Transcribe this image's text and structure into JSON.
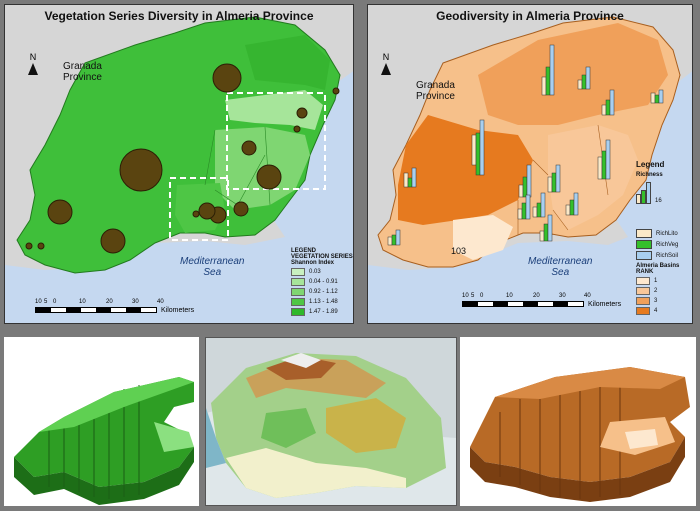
{
  "left_map": {
    "title": "Vegetation Series Diversity in Almeria Province",
    "north_label": "N",
    "province_label": "Granada\nProvince",
    "sea_label": "Mediterranean\nSea",
    "scale": {
      "ticks": [
        "10",
        "5",
        "0",
        "10",
        "20",
        "30",
        "40"
      ],
      "unit": "Kilometers"
    },
    "legend": {
      "title": "LEGEND",
      "subtitle": "VEGETATION SERIES",
      "index_label": "Shannon Index",
      "classes": [
        {
          "label": "0.03",
          "color": "#c8f0c0"
        },
        {
          "label": "0.04 - 0.91",
          "color": "#a6e59a"
        },
        {
          "label": "0.92 - 1.12",
          "color": "#7fd672"
        },
        {
          "label": "1.13 - 1.48",
          "color": "#4ec645"
        },
        {
          "label": "1.47 - 1.89",
          "color": "#2fb82a"
        }
      ]
    },
    "colors": {
      "land": "#3fbf3a",
      "sea": "#c5d8f0",
      "circle": "#5a4410"
    }
  },
  "right_map": {
    "title": "Geodiversity in Almeria Province",
    "north_label": "N",
    "province_label": "Granada\nProvince",
    "sea_label": "Mediterranean\nSea",
    "basin_number": "103",
    "scale": {
      "ticks": [
        "10",
        "5",
        "0",
        "10",
        "20",
        "30",
        "40"
      ],
      "unit": "Kilometers"
    },
    "legend": {
      "title": "Legend",
      "richness_label": "Richness",
      "richness_value": "16",
      "bar_series": [
        {
          "label": "RichLito",
          "color": "#fbe9c8"
        },
        {
          "label": "RichVeg",
          "color": "#34c02b"
        },
        {
          "label": "RichSoil",
          "color": "#a8cff0"
        }
      ],
      "basins_label": "Almeria Basins",
      "rank_label": "RANK",
      "ranks": [
        {
          "label": "1",
          "color": "#fde8cf"
        },
        {
          "label": "2",
          "color": "#f8c799"
        },
        {
          "label": "3",
          "color": "#f0a05a"
        },
        {
          "label": "4",
          "color": "#e67a1f"
        }
      ]
    },
    "colors": {
      "sea": "#c5d8f0"
    }
  },
  "bottom": {
    "left_color": "#2e9e24",
    "right_color": "#b86a26"
  }
}
